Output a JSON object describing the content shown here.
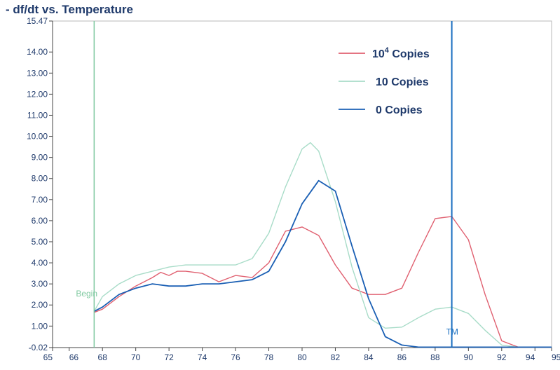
{
  "chart_data": {
    "type": "line",
    "title": "- df/dt vs. Temperature",
    "xlabel": "",
    "ylabel": "",
    "xlim": [
      65,
      95
    ],
    "ylim": [
      -0.02,
      15.47
    ],
    "x_ticks": [
      "65",
      "66",
      "68",
      "70",
      "72",
      "74",
      "76",
      "78",
      "80",
      "82",
      "84",
      "86",
      "88",
      "90",
      "92",
      "94",
      "95"
    ],
    "y_ticks": [
      "15.47",
      "14.00",
      "13.00",
      "12.00",
      "11.00",
      "10.00",
      "9.00",
      "8.00",
      "7.00",
      "6.00",
      "5.00",
      "4.00",
      "3.00",
      "2.00",
      "1.00",
      "-0.02"
    ],
    "legend_position": "top-right",
    "colors": {
      "background": "#ffffff",
      "axis": "#888888",
      "text": "#1f3a6b"
    },
    "markers": [
      {
        "label": "Begin",
        "x": 67.5,
        "color": "#7fc9a0"
      },
      {
        "label": "TM",
        "x": 89.0,
        "color": "#1a6fc0"
      }
    ],
    "series": [
      {
        "name": "10^4 Copies",
        "name_base": "10",
        "name_sup": "4",
        "name_rest": " Copies",
        "color": "#e06070",
        "x": [
          67.5,
          68,
          69,
          70,
          71,
          71.5,
          72,
          72.5,
          73,
          74,
          75,
          76,
          77,
          78,
          79,
          80,
          81,
          82,
          83,
          84,
          85,
          86,
          87,
          88,
          89,
          90,
          91,
          92,
          93,
          94,
          95
        ],
        "y": [
          1.65,
          1.8,
          2.4,
          2.9,
          3.3,
          3.55,
          3.4,
          3.6,
          3.6,
          3.5,
          3.1,
          3.4,
          3.3,
          4.0,
          5.5,
          5.7,
          5.3,
          3.9,
          2.8,
          2.5,
          2.5,
          2.8,
          4.5,
          6.1,
          6.2,
          5.1,
          2.5,
          0.3,
          0.0,
          0.0,
          0.0
        ]
      },
      {
        "name": "10 Copies",
        "color": "#a8dcc8",
        "x": [
          67.5,
          68,
          69,
          70,
          71,
          72,
          73,
          74,
          75,
          76,
          77,
          78,
          79,
          80,
          80.5,
          81,
          82,
          83,
          84,
          85,
          86,
          87,
          88,
          89,
          90,
          91,
          92,
          93,
          94,
          95
        ],
        "y": [
          1.7,
          2.4,
          3.0,
          3.4,
          3.6,
          3.8,
          3.9,
          3.9,
          3.9,
          3.9,
          4.2,
          5.4,
          7.6,
          9.4,
          9.7,
          9.3,
          6.9,
          3.8,
          1.4,
          0.9,
          0.95,
          1.4,
          1.8,
          1.9,
          1.6,
          0.8,
          0.1,
          0.0,
          0.0,
          0.0
        ]
      },
      {
        "name": "0 Copies",
        "color": "#1a5fb4",
        "x": [
          67.5,
          68,
          69,
          70,
          71,
          72,
          73,
          74,
          75,
          76,
          77,
          78,
          79,
          80,
          81,
          82,
          83,
          84,
          85,
          86,
          87,
          88,
          89,
          90,
          92,
          95
        ],
        "y": [
          1.7,
          1.9,
          2.5,
          2.8,
          3.0,
          2.9,
          2.9,
          3.0,
          3.0,
          3.1,
          3.2,
          3.6,
          5.0,
          6.8,
          7.9,
          7.4,
          4.8,
          2.3,
          0.5,
          0.1,
          0.0,
          0.0,
          0.0,
          0.0,
          0.0,
          0.0
        ]
      }
    ]
  }
}
